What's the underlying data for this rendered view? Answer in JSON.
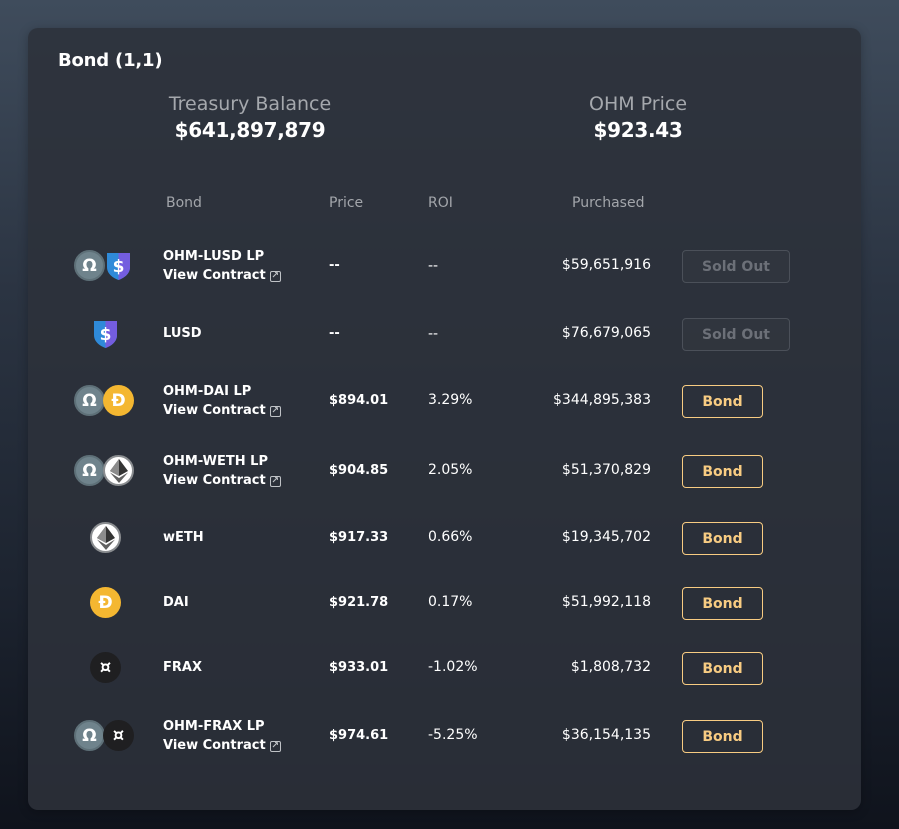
{
  "card": {
    "title": "Bond (1,1)",
    "treasury": {
      "label": "Treasury Balance",
      "value": "$641,897,879"
    },
    "ohm_price": {
      "label": "OHM Price",
      "value": "$923.43"
    }
  },
  "table": {
    "headers": {
      "bond": "Bond",
      "price": "Price",
      "roi": "ROI",
      "purchased": "Purchased"
    },
    "view_contract_label": "View Contract",
    "rows": [
      {
        "name": "OHM-LUSD LP",
        "price": "--",
        "roi": "--",
        "purchased": "$59,651,916",
        "button": "Sold Out"
      },
      {
        "name": "LUSD",
        "price": "--",
        "roi": "--",
        "purchased": "$76,679,065",
        "button": "Sold Out"
      },
      {
        "name": "OHM-DAI LP",
        "price": "$894.01",
        "roi": "3.29%",
        "purchased": "$344,895,383",
        "button": "Bond"
      },
      {
        "name": "OHM-WETH LP",
        "price": "$904.85",
        "roi": "2.05%",
        "purchased": "$51,370,829",
        "button": "Bond"
      },
      {
        "name": "wETH",
        "price": "$917.33",
        "roi": "0.66%",
        "purchased": "$19,345,702",
        "button": "Bond"
      },
      {
        "name": "DAI",
        "price": "$921.78",
        "roi": "0.17%",
        "purchased": "$51,992,118",
        "button": "Bond"
      },
      {
        "name": "FRAX",
        "price": "$933.01",
        "roi": "-1.02%",
        "purchased": "$1,808,732",
        "button": "Bond"
      },
      {
        "name": "OHM-FRAX LP",
        "price": "$974.61",
        "roi": "-5.25%",
        "purchased": "$36,154,135",
        "button": "Bond"
      }
    ]
  },
  "icons": {
    "ohm": "ohm-token-icon",
    "lusd": "lusd-token-icon",
    "dai": "dai-token-icon",
    "eth": "eth-token-icon",
    "frax": "frax-token-icon",
    "external": "external-link-icon"
  },
  "colors": {
    "accent": "#f8cc82",
    "card_bg": "#2c313a",
    "ohm": "#6f838c",
    "dai": "#f4b731",
    "lusd_blue": "#2f8ad9",
    "lusd_purple": "#745ddf"
  }
}
